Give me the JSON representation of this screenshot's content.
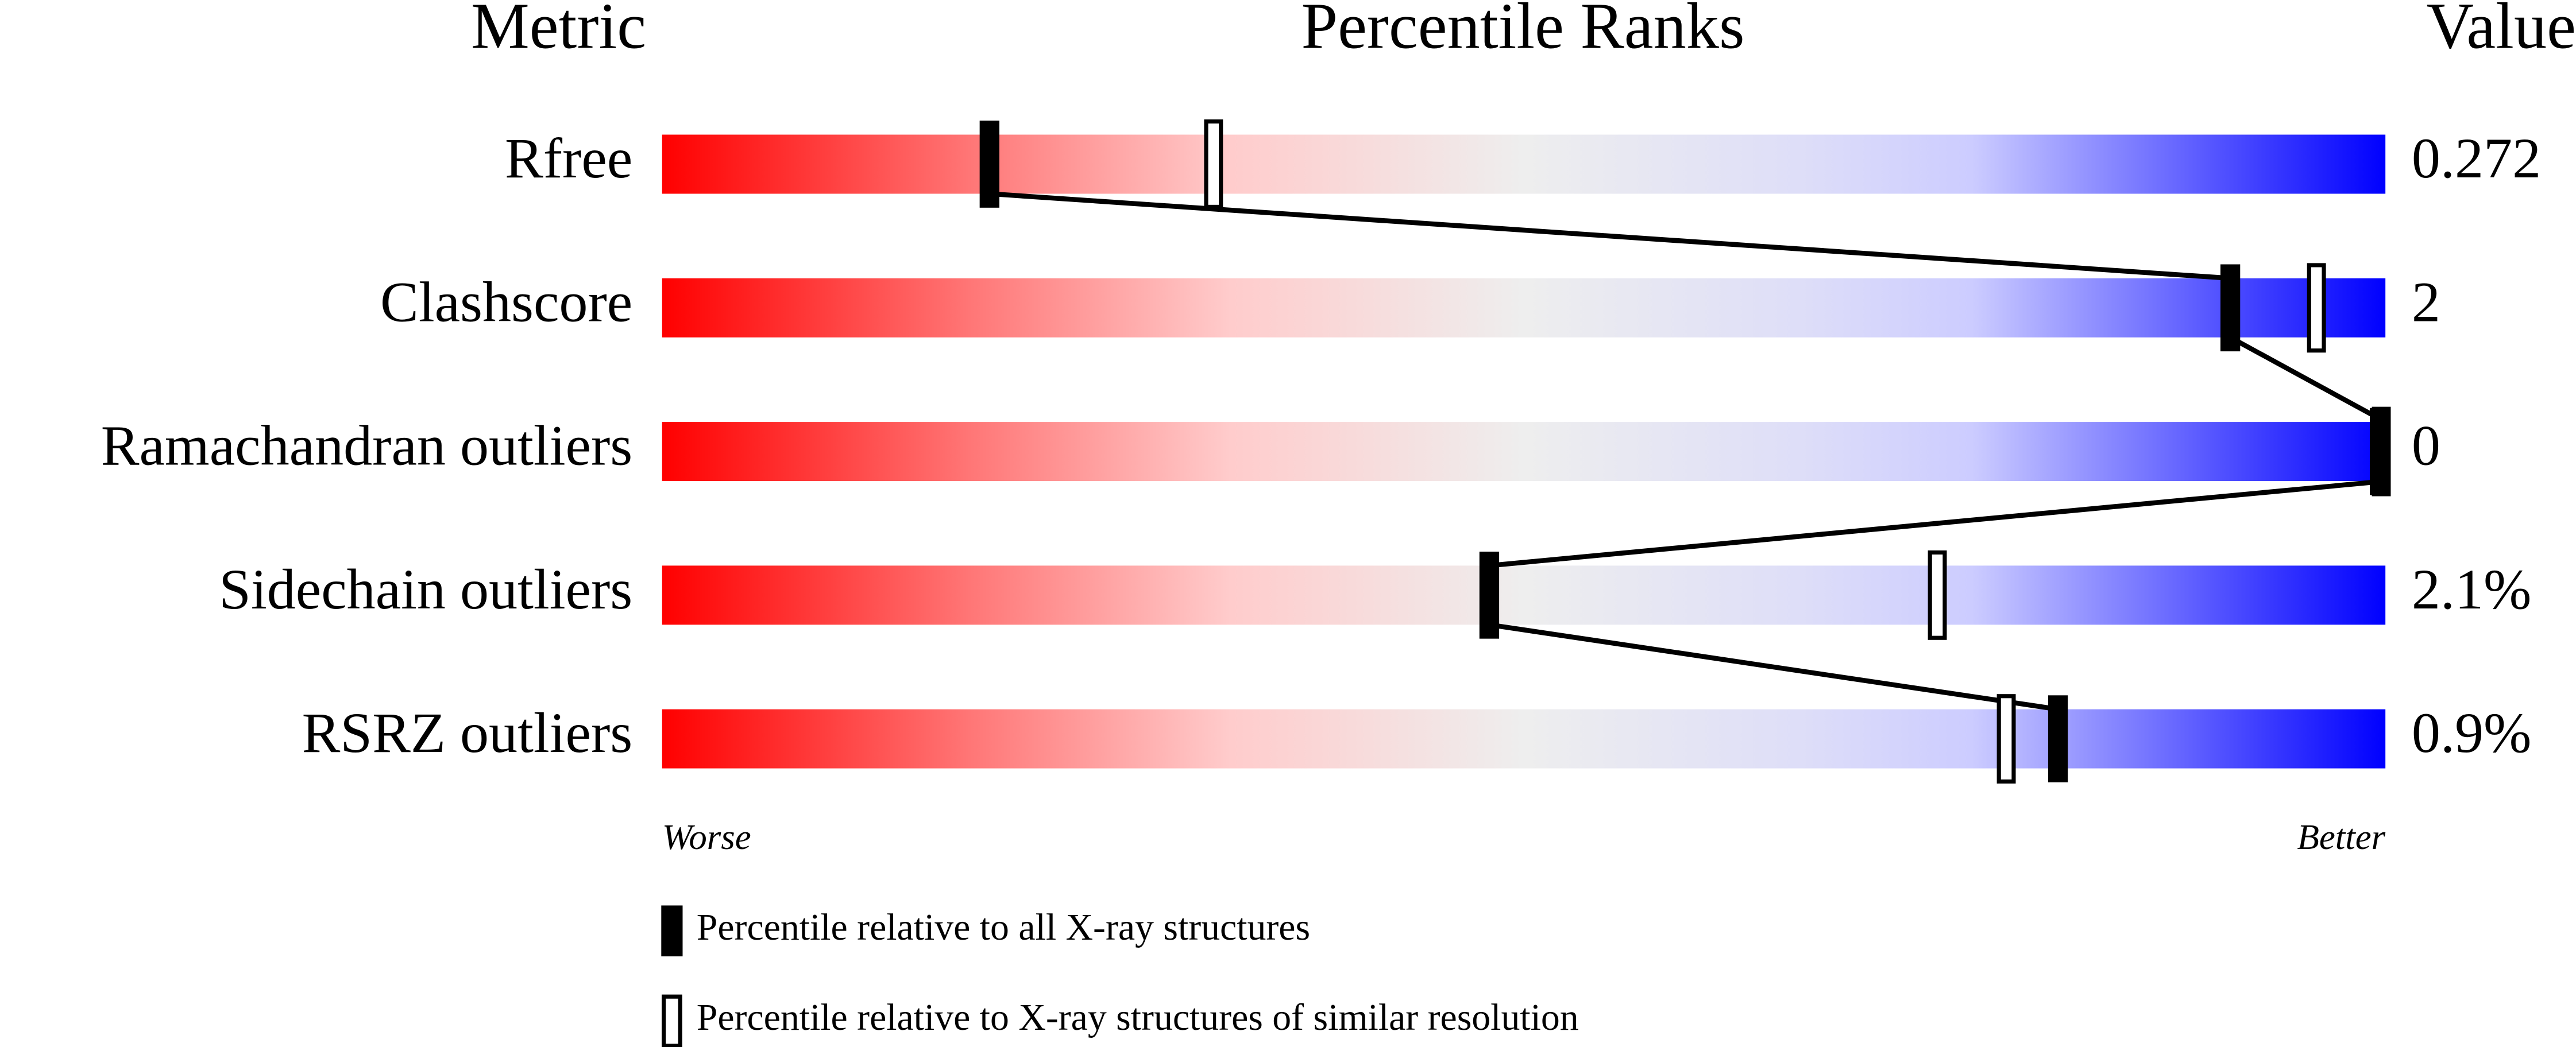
{
  "chart_data": {
    "type": "percentile-slider",
    "columns": {
      "metric": "Metric",
      "percentile": "Percentile Ranks",
      "value": "Value"
    },
    "categories": [
      "Rfree",
      "Clashscore",
      "Ramachandran outliers",
      "Sidechain outliers",
      "RSRZ outliers"
    ],
    "metric_values": [
      "0.272",
      "2",
      "0",
      "2.1%",
      "0.9%"
    ],
    "series": [
      {
        "name": "Percentile relative to all X-ray structures",
        "style": "filled",
        "color": "#000000",
        "values": [
          19,
          91,
          100,
          48,
          81
        ]
      },
      {
        "name": "Percentile relative to X-ray structures of similar resolution",
        "style": "open",
        "color": "#000000",
        "values": [
          32,
          96,
          100,
          74,
          78
        ]
      }
    ],
    "xlim": [
      0,
      100
    ],
    "axis_end_labels": [
      "Worse",
      "Better"
    ]
  }
}
